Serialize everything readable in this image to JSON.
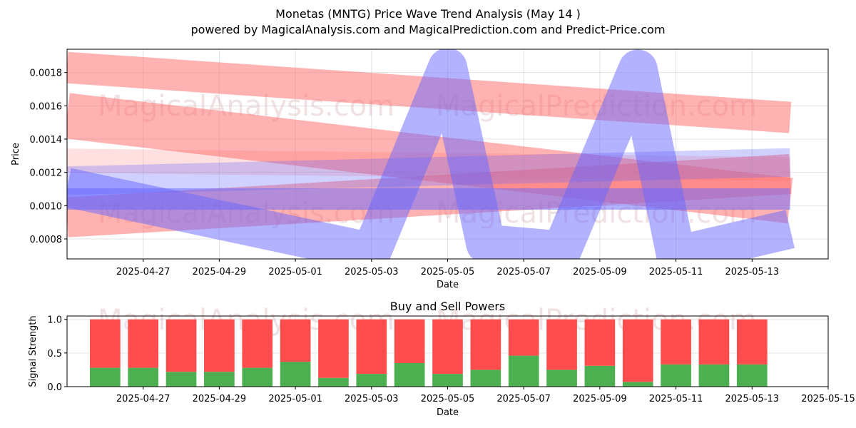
{
  "title_line1": "Monetas (MNTG) Price Wave Trend Analysis (May 14 )",
  "title_line2": "powered by MagicalAnalysis.com and MagicalPrediction.com and Predict-Price.com",
  "watermarks": [
    "MagicalAnalysis.com",
    "MagicalPrediction.com"
  ],
  "colors": {
    "red_band": "#ff6666",
    "blue_band": "#6666ff",
    "buy": "#4caf50",
    "sell": "#ff4d4d"
  },
  "chart_data": [
    {
      "type": "line",
      "title": "",
      "xlabel": "Date",
      "ylabel": "Price",
      "xlim": [
        "2025-04-25",
        "2025-05-15"
      ],
      "ylim": [
        0.00068,
        0.00194
      ],
      "x_ticks": [
        "2025-04-27",
        "2025-04-29",
        "2025-05-01",
        "2025-05-03",
        "2025-05-05",
        "2025-05-07",
        "2025-05-09",
        "2025-05-11",
        "2025-05-13"
      ],
      "y_ticks": [
        0.0008,
        0.001,
        0.0012,
        0.0014,
        0.0016,
        0.0018
      ],
      "grid": true,
      "series": [
        {
          "color": "red",
          "points": [
            [
              "2025-04-25",
              0.00183
            ],
            [
              "2025-05-14",
              0.00153
            ]
          ],
          "alpha": 0.5
        },
        {
          "color": "red",
          "points": [
            [
              "2025-04-25",
              0.00154
            ],
            [
              "2025-05-14",
              0.00103
            ]
          ],
          "alpha": 0.5
        },
        {
          "color": "red",
          "points": [
            [
              "2025-04-25",
              0.00093
            ],
            [
              "2025-05-14",
              0.00119
            ]
          ],
          "alpha": 0.5
        },
        {
          "color": "red",
          "points": [
            [
              "2025-04-25",
              0.00127
            ],
            [
              "2025-05-14",
              0.00122
            ]
          ],
          "alpha": 0.2
        },
        {
          "color": "blue",
          "points": [
            [
              "2025-04-25",
              0.00111
            ],
            [
              "2025-05-03",
              0.00072
            ],
            [
              "2025-05-05",
              0.00183
            ],
            [
              "2025-05-06",
              0.00077
            ],
            [
              "2025-05-08",
              0.00073
            ],
            [
              "2025-05-10",
              0.00182
            ],
            [
              "2025-05-11",
              0.0007
            ],
            [
              "2025-05-14",
              0.00086
            ]
          ],
          "alpha": 0.5
        },
        {
          "color": "blue",
          "points": [
            [
              "2025-04-25",
              0.00104
            ],
            [
              "2025-05-14",
              0.00104
            ]
          ],
          "alpha": 0.5
        },
        {
          "color": "blue",
          "points": [
            [
              "2025-04-25",
              0.00115
            ],
            [
              "2025-05-14",
              0.00126
            ]
          ],
          "alpha": 0.3
        }
      ]
    },
    {
      "type": "bar",
      "title": "Buy and Sell Powers",
      "xlabel": "Date",
      "ylabel": "Signal Strength",
      "ylim": [
        0,
        1.05
      ],
      "xlim": [
        "2025-04-25",
        "2025-05-15"
      ],
      "x_ticks": [
        "2025-04-27",
        "2025-04-29",
        "2025-05-01",
        "2025-05-03",
        "2025-05-05",
        "2025-05-07",
        "2025-05-09",
        "2025-05-11",
        "2025-05-13",
        "2025-05-15"
      ],
      "y_ticks": [
        0.0,
        0.5,
        1.0
      ],
      "categories": [
        "2025-04-26",
        "2025-04-27",
        "2025-04-28",
        "2025-04-29",
        "2025-04-30",
        "2025-05-01",
        "2025-05-02",
        "2025-05-03",
        "2025-05-04",
        "2025-05-05",
        "2025-05-06",
        "2025-05-07",
        "2025-05-08",
        "2025-05-09",
        "2025-05-10",
        "2025-05-11",
        "2025-05-12",
        "2025-05-13"
      ],
      "series": [
        {
          "name": "Buy",
          "values": [
            0.28,
            0.28,
            0.22,
            0.22,
            0.28,
            0.37,
            0.13,
            0.19,
            0.35,
            0.19,
            0.25,
            0.46,
            0.25,
            0.31,
            0.07,
            0.33,
            0.33,
            0.33
          ]
        },
        {
          "name": "Sell",
          "values": [
            0.72,
            0.72,
            0.78,
            0.78,
            0.72,
            0.63,
            0.87,
            0.81,
            0.65,
            0.81,
            0.75,
            0.54,
            0.75,
            0.69,
            0.93,
            0.67,
            0.67,
            0.67
          ]
        }
      ]
    }
  ]
}
